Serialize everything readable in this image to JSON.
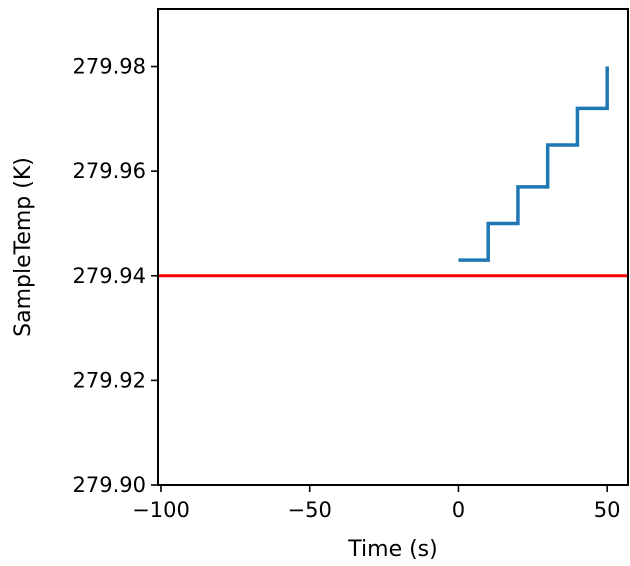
{
  "chart_data": {
    "type": "line",
    "title": "",
    "xlabel": "Time (s)",
    "ylabel": "SampleTemp (K)",
    "xlim": [
      -101,
      57
    ],
    "ylim": [
      279.9,
      279.991
    ],
    "x_ticks": [
      -100,
      -50,
      0,
      50
    ],
    "x_tick_labels": [
      "−100",
      "−50",
      "0",
      "50"
    ],
    "y_ticks": [
      279.9,
      279.92,
      279.94,
      279.96,
      279.98
    ],
    "y_tick_labels": [
      "279.90",
      "279.92",
      "279.94",
      "279.96",
      "279.98"
    ],
    "grid": false,
    "series": [
      {
        "color": "#1f77b4",
        "drawstyle": "steps-post",
        "x": [
          0,
          10,
          20,
          30,
          40,
          50
        ],
        "y": [
          279.943,
          279.95,
          279.957,
          279.965,
          279.972,
          279.98
        ]
      }
    ],
    "reference_lines": [
      {
        "orientation": "horizontal",
        "y": 279.94,
        "color": "#ff0000"
      }
    ]
  }
}
